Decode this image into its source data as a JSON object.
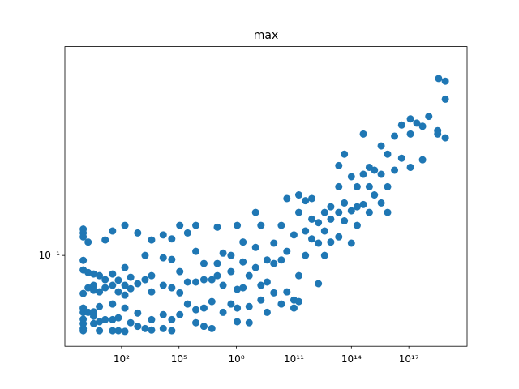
{
  "chart_data": {
    "type": "scatter",
    "title": "max",
    "color": "#1f77b4",
    "log_x": true,
    "log_y": true,
    "xlim": [
      0.11,
      1.1e+20
    ],
    "ylim": [
      0.0463,
      0.587
    ],
    "xticks": [
      {
        "value": 100,
        "label": "10²"
      },
      {
        "value": 100000,
        "label": "10⁵"
      },
      {
        "value": 100000000,
        "label": "10⁸"
      },
      {
        "value": 100000000000.0,
        "label": "10¹¹"
      },
      {
        "value": 100000000000000.0,
        "label": "10¹⁴"
      },
      {
        "value": 1e+17,
        "label": "10¹⁷"
      }
    ],
    "yticks": [
      {
        "value": 0.1,
        "label": "10⁻¹"
      }
    ],
    "x": [
      1,
      1,
      1,
      1,
      1,
      1,
      1,
      1,
      1,
      1,
      1,
      1,
      1.8,
      1.8,
      1.8,
      1.8,
      3.5,
      3.5,
      3.5,
      3.5,
      3.5,
      3.5,
      7,
      7,
      7,
      7,
      7,
      14,
      14,
      14,
      14,
      34,
      34,
      34,
      34,
      34,
      34,
      68,
      68,
      68,
      68,
      150,
      150,
      150,
      150,
      150,
      150,
      300,
      300,
      300,
      700,
      700,
      700,
      700,
      1700,
      1700,
      1700,
      3700,
      3700,
      3700,
      3700,
      3700,
      15000,
      15000,
      15000,
      15000,
      15000,
      42000,
      42000,
      42000,
      42000,
      42000,
      110000,
      110000,
      110000,
      110000,
      280000,
      280000,
      280000,
      760000,
      760000,
      760000,
      760000,
      760000,
      2000000.0,
      2000000.0,
      2000000.0,
      2000000.0,
      5200000.0,
      5200000.0,
      5200000.0,
      10000000.0,
      10000000.0,
      10000000.0,
      20000000.0,
      20000000.0,
      20000000.0,
      52000000.0,
      52000000.0,
      52000000.0,
      110000000.0,
      110000000.0,
      110000000.0,
      110000000.0,
      220000000.0,
      220000000.0,
      220000000.0,
      460000000.0,
      460000000.0,
      460000000.0,
      1000000000.0,
      1000000000.0,
      1000000000.0,
      1900000000.0,
      1900000000.0,
      1900000000.0,
      4000000000.0,
      4000000000.0,
      4000000000.0,
      9000000000.0,
      9000000000.0,
      9000000000.0,
      22000000000.0,
      22000000000.0,
      22000000000.0,
      43000000000.0,
      43000000000.0,
      43000000000.0,
      100000000000.0,
      100000000000.0,
      100000000000.0,
      180000000000.0,
      180000000000.0,
      180000000000.0,
      180000000000.0,
      400000000000.0,
      400000000000.0,
      400000000000.0,
      860000000000.0,
      860000000000.0,
      860000000000.0,
      1900000000000.0,
      1900000000000.0,
      1900000000000.0,
      4000000000000.0,
      4000000000000.0,
      4000000000000.0,
      8400000000000.0,
      8400000000000.0,
      8400000000000.0,
      22000000000000.0,
      22000000000000.0,
      22000000000000.0,
      22000000000000.0,
      43000000000000.0,
      43000000000000.0,
      43000000000000.0,
      100000000000000.0,
      100000000000000.0,
      100000000000000.0,
      200000000000000.0,
      200000000000000.0,
      200000000000000.0,
      420000000000000.0,
      420000000000000.0,
      420000000000000.0,
      860000000000000.0,
      860000000000000.0,
      860000000000000.0,
      1600000000000000.0,
      1600000000000000.0,
      3600000000000000.0,
      3600000000000000.0,
      3600000000000000.0,
      7800000000000000.0,
      7800000000000000.0,
      7800000000000000.0,
      1.8e+16,
      1.8e+16,
      4.2e+16,
      4.2e+16,
      1.2e+17,
      1.2e+17,
      1.2e+17,
      2.6e+17,
      5.2e+17,
      5.2e+17,
      1.1e+18,
      3.2e+18,
      3.2e+18,
      3.6e+18,
      8e+18,
      8e+18,
      8e+18
    ],
    "values": [
      0.125,
      0.121,
      0.117,
      0.0959,
      0.0884,
      0.0724,
      0.064,
      0.0617,
      0.0582,
      0.0561,
      0.0538,
      0.0528,
      0.112,
      0.0865,
      0.076,
      0.0617,
      0.0854,
      0.0776,
      0.0744,
      0.062,
      0.0597,
      0.0561,
      0.0842,
      0.0734,
      0.0648,
      0.057,
      0.0528,
      0.114,
      0.0814,
      0.076,
      0.058,
      0.123,
      0.0854,
      0.0776,
      0.0662,
      0.058,
      0.0528,
      0.081,
      0.0734,
      0.0589,
      0.0528,
      0.129,
      0.0902,
      0.0776,
      0.0714,
      0.064,
      0.0525,
      0.0831,
      0.0754,
      0.0565,
      0.121,
      0.0787,
      0.0613,
      0.0548,
      0.1,
      0.0814,
      0.0538,
      0.114,
      0.0842,
      0.0734,
      0.058,
      0.0531,
      0.119,
      0.098,
      0.0776,
      0.0605,
      0.0538,
      0.115,
      0.0966,
      0.076,
      0.058,
      0.0528,
      0.129,
      0.0872,
      0.0728,
      0.0605,
      0.121,
      0.0798,
      0.0662,
      0.129,
      0.1035,
      0.0798,
      0.0631,
      0.0565,
      0.0934,
      0.0814,
      0.064,
      0.0548,
      0.0814,
      0.0676,
      0.0538,
      0.127,
      0.0934,
      0.0842,
      0.102,
      0.0776,
      0.0617,
      0.1,
      0.0872,
      0.0662,
      0.129,
      0.075,
      0.064,
      0.057,
      0.112,
      0.0946,
      0.076,
      0.0842,
      0.0648,
      0.0565,
      0.144,
      0.107,
      0.0902,
      0.129,
      0.0776,
      0.0685,
      0.0962,
      0.0798,
      0.0617,
      0.111,
      0.0934,
      0.0728,
      0.129,
      0.0962,
      0.0662,
      0.162,
      0.1035,
      0.0734,
      0.119,
      0.0685,
      0.064,
      0.167,
      0.144,
      0.0842,
      0.0676,
      0.159,
      0.123,
      0.1,
      0.162,
      0.136,
      0.115,
      0.132,
      0.111,
      0.0787,
      0.144,
      0.123,
      0.1,
      0.151,
      0.136,
      0.112,
      0.214,
      0.179,
      0.144,
      0.117,
      0.236,
      0.156,
      0.134,
      0.195,
      0.146,
      0.111,
      0.179,
      0.151,
      0.129,
      0.28,
      0.199,
      0.154,
      0.211,
      0.179,
      0.144,
      0.206,
      0.167,
      0.253,
      0.199,
      0.156,
      0.236,
      0.179,
      0.144,
      0.275,
      0.206,
      0.302,
      0.228,
      0.318,
      0.28,
      0.211,
      0.307,
      0.299,
      0.225,
      0.325,
      0.288,
      0.28,
      0.448,
      0.438,
      0.376,
      0.271
    ]
  }
}
